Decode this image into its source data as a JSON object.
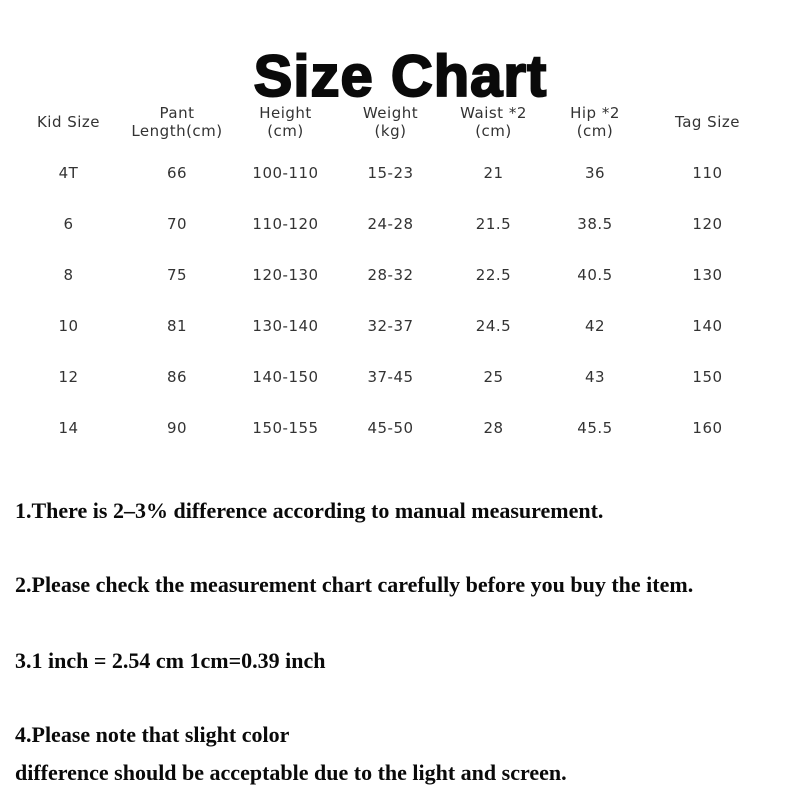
{
  "title": "Size Chart",
  "table": {
    "headers": [
      [
        "Kid Size",
        ""
      ],
      [
        "Pant",
        "Length(cm)"
      ],
      [
        "Height",
        "(cm)"
      ],
      [
        "Weight",
        "(kg)"
      ],
      [
        "Waist *2",
        "(cm)"
      ],
      [
        "Hip *2",
        "(cm)"
      ],
      [
        "Tag Size",
        ""
      ]
    ],
    "rows": [
      [
        "4T",
        "66",
        "100-110",
        "15-23",
        "21",
        "36",
        "110"
      ],
      [
        "6",
        "70",
        "110-120",
        "24-28",
        "21.5",
        "38.5",
        "120"
      ],
      [
        "8",
        "75",
        "120-130",
        "28-32",
        "22.5",
        "40.5",
        "130"
      ],
      [
        "10",
        "81",
        "130-140",
        "32-37",
        "24.5",
        "42",
        "140"
      ],
      [
        "12",
        "86",
        "140-150",
        "37-45",
        "25",
        "43",
        "150"
      ],
      [
        "14",
        "90",
        "150-155",
        "45-50",
        "28",
        "45.5",
        "160"
      ]
    ]
  },
  "notes": [
    {
      "lines": [
        "1.There is 2–3% difference according to manual measurement."
      ]
    },
    {
      "lines": [
        "2.Please check the measurement chart carefully before you buy the item."
      ]
    },
    {
      "lines": [
        "3.1 inch = 2.54 cm  1cm=0.39 inch"
      ]
    },
    {
      "lines": [
        "4.Please note that slight color",
        "difference should be acceptable due to the light and screen."
      ]
    }
  ],
  "colors": {
    "background": "#ffffff",
    "title_text": "#0a0a0a",
    "table_text": "#333333",
    "note_text": "#0a0a0a"
  }
}
